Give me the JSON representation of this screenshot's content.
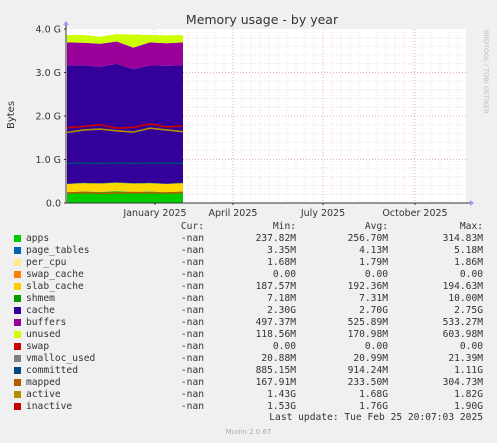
{
  "chart_data": {
    "type": "area",
    "title": "Memory usage - by year",
    "ylabel": "Bytes",
    "side_label": "RRDTOOL / TOBI OETIKER",
    "y_ticks": [
      {
        "value": 0,
        "label": "0.0"
      },
      {
        "value": 1,
        "label": "1.0 G"
      },
      {
        "value": 2,
        "label": "2.0 G"
      },
      {
        "value": 3,
        "label": "3.0 G"
      },
      {
        "value": 4,
        "label": "4.0 G"
      }
    ],
    "ylim": [
      0,
      4.0
    ],
    "x_ticks": [
      "January 2025",
      "April 2025",
      "July 2025",
      "October 2025"
    ],
    "stacked_series_gb": [
      {
        "name": "apps",
        "color": "#00cc00",
        "values": [
          0.24,
          0.26,
          0.25,
          0.27,
          0.25,
          0.26,
          0.24,
          0.26
        ]
      },
      {
        "name": "page_tables",
        "color": "#0066b3",
        "values": [
          0.004,
          0.004,
          0.004,
          0.004,
          0.004,
          0.004,
          0.004,
          0.004
        ]
      },
      {
        "name": "per_cpu",
        "color": "#ff8000",
        "values": [
          0.002,
          0.002,
          0.002,
          0.002,
          0.002,
          0.002,
          0.002,
          0.002
        ]
      },
      {
        "name": "swap_cache",
        "color": "#ffcc00",
        "values": [
          0,
          0,
          0,
          0,
          0,
          0,
          0,
          0
        ]
      },
      {
        "name": "slab_cache",
        "color": "#ffd700",
        "values": [
          0.19,
          0.19,
          0.19,
          0.19,
          0.19,
          0.19,
          0.19,
          0.19
        ]
      },
      {
        "name": "shmem",
        "color": "#009900",
        "values": [
          0.007,
          0.007,
          0.007,
          0.007,
          0.007,
          0.007,
          0.007,
          0.007
        ]
      },
      {
        "name": "cache",
        "color": "#330099",
        "values": [
          2.72,
          2.7,
          2.68,
          2.73,
          2.62,
          2.7,
          2.71,
          2.7
        ]
      },
      {
        "name": "buffers",
        "color": "#990099",
        "values": [
          0.53,
          0.52,
          0.53,
          0.51,
          0.5,
          0.53,
          0.52,
          0.53
        ]
      },
      {
        "name": "unused",
        "color": "#ccff00",
        "values": [
          0.17,
          0.18,
          0.16,
          0.17,
          0.3,
          0.17,
          0.18,
          0.17
        ]
      }
    ],
    "line_series_gb": [
      {
        "name": "committed",
        "color": "#00487d",
        "values": [
          0.91,
          0.92,
          0.91,
          0.92,
          0.91,
          0.92,
          0.92,
          0.91
        ]
      },
      {
        "name": "mapped",
        "color": "#b35a00",
        "values": [
          0.23,
          0.24,
          0.22,
          0.23,
          0.24,
          0.23,
          0.23,
          0.24
        ]
      },
      {
        "name": "active",
        "color": "#b38f00",
        "values": [
          1.62,
          1.68,
          1.7,
          1.66,
          1.63,
          1.72,
          1.68,
          1.64
        ]
      },
      {
        "name": "inactive",
        "color": "#cc0000",
        "values": [
          1.73,
          1.76,
          1.8,
          1.72,
          1.74,
          1.82,
          1.75,
          1.77
        ]
      }
    ]
  },
  "legend": {
    "headers": {
      "cur": "Cur:",
      "min": "Min:",
      "avg": "Avg:",
      "max": "Max:"
    },
    "rows": [
      {
        "name": "apps",
        "color": "#00cc00",
        "cur": "-nan",
        "min": "237.82M",
        "avg": "256.70M",
        "max": "314.83M"
      },
      {
        "name": "page_tables",
        "color": "#0066b3",
        "cur": "-nan",
        "min": "3.35M",
        "avg": "4.13M",
        "max": "5.18M"
      },
      {
        "name": "per_cpu",
        "color": "#ffeb8a",
        "cur": "-nan",
        "min": "1.68M",
        "avg": "1.79M",
        "max": "1.86M"
      },
      {
        "name": "swap_cache",
        "color": "#ff8000",
        "cur": "-nan",
        "min": "0.00",
        "avg": "0.00",
        "max": "0.00"
      },
      {
        "name": "slab_cache",
        "color": "#ffcc00",
        "cur": "-nan",
        "min": "187.57M",
        "avg": "192.36M",
        "max": "194.63M"
      },
      {
        "name": "shmem",
        "color": "#009900",
        "cur": "-nan",
        "min": "7.18M",
        "avg": "7.31M",
        "max": "10.00M"
      },
      {
        "name": "cache",
        "color": "#330099",
        "cur": "-nan",
        "min": "2.30G",
        "avg": "2.70G",
        "max": "2.75G"
      },
      {
        "name": "buffers",
        "color": "#990099",
        "cur": "-nan",
        "min": "497.37M",
        "avg": "525.89M",
        "max": "533.27M"
      },
      {
        "name": "unused",
        "color": "#ccff00",
        "cur": "-nan",
        "min": "118.56M",
        "avg": "170.98M",
        "max": "603.98M"
      },
      {
        "name": "swap",
        "color": "#cc0000",
        "cur": "-nan",
        "min": "0.00",
        "avg": "0.00",
        "max": "0.00"
      },
      {
        "name": "vmalloc_used",
        "color": "#808080",
        "cur": "-nan",
        "min": "20.88M",
        "avg": "20.99M",
        "max": "21.39M"
      },
      {
        "name": "committed",
        "color": "#00487d",
        "cur": "-nan",
        "min": "885.15M",
        "avg": "914.24M",
        "max": "1.11G"
      },
      {
        "name": "mapped",
        "color": "#b35a00",
        "cur": "-nan",
        "min": "167.91M",
        "avg": "233.50M",
        "max": "304.73M"
      },
      {
        "name": "active",
        "color": "#b38f00",
        "cur": "-nan",
        "min": "1.43G",
        "avg": "1.68G",
        "max": "1.82G"
      },
      {
        "name": "inactive",
        "color": "#cc0000",
        "cur": "-nan",
        "min": "1.53G",
        "avg": "1.76G",
        "max": "1.90G"
      }
    ]
  },
  "last_update": "Last update: Tue Feb 25 20:07:03 2025",
  "footer": "Munin 2.0.67"
}
